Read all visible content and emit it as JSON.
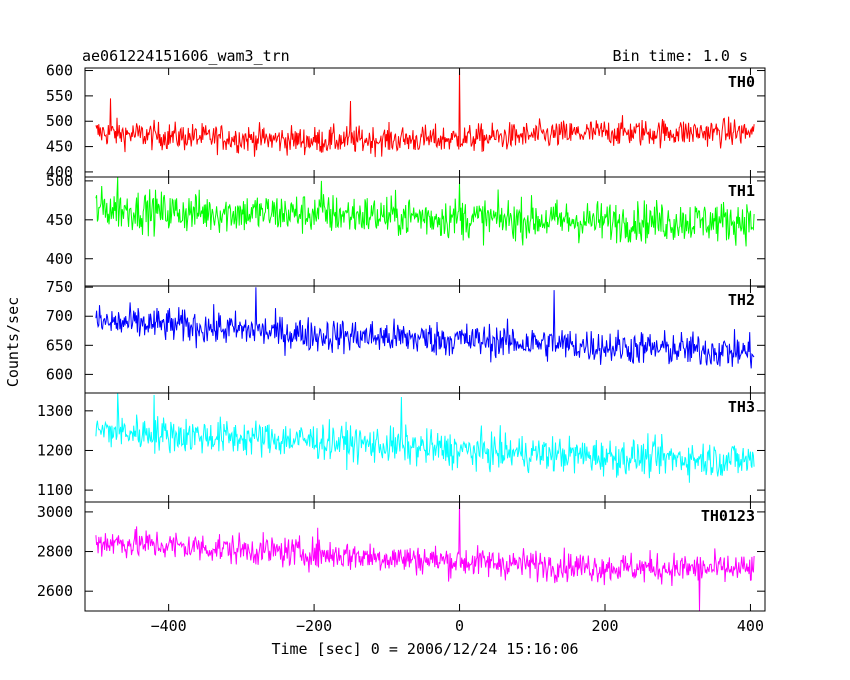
{
  "chart_data": {
    "type": "line",
    "title": "ae061224151606_wam3_trn",
    "subtitle": "Bin time: 1.0 s",
    "xlabel": "Time [sec] 0 = 2006/12/24 15:16:06",
    "ylabel": "Counts/sec",
    "xlim": [
      -515,
      420
    ],
    "x_range": [
      -500,
      405
    ],
    "x_ticks": [
      -400,
      -200,
      0,
      200,
      400
    ],
    "x_tick_labels": [
      "−400",
      "−200",
      "0",
      "200",
      "400"
    ],
    "grid": false,
    "panels": [
      {
        "name": "TH0",
        "color": "#ff0000",
        "ylim": [
          390,
          605
        ],
        "y_ticks": [
          400,
          450,
          500,
          550,
          600
        ],
        "y_tick_labels": [
          "400",
          "450",
          "500",
          "550",
          "600"
        ],
        "baseline": [
          [
            -500,
            478
          ],
          [
            -400,
            470
          ],
          [
            -200,
            462
          ],
          [
            0,
            465
          ],
          [
            200,
            478
          ],
          [
            405,
            478
          ]
        ],
        "noise": 25,
        "spikes": [
          [
            0,
            605
          ],
          [
            -480,
            545
          ],
          [
            -150,
            540
          ]
        ]
      },
      {
        "name": "TH1",
        "color": "#00ff00",
        "ylim": [
          365,
          505
        ],
        "y_ticks": [
          400,
          450,
          500
        ],
        "y_tick_labels": [
          "400",
          "450",
          "500"
        ],
        "baseline": [
          [
            -500,
            465
          ],
          [
            -400,
            460
          ],
          [
            -200,
            458
          ],
          [
            0,
            452
          ],
          [
            200,
            448
          ],
          [
            405,
            448
          ]
        ],
        "noise": 24,
        "spikes": [
          [
            0,
            498
          ],
          [
            -470,
            505
          ],
          [
            -190,
            500
          ]
        ]
      },
      {
        "name": "TH2",
        "color": "#0000ff",
        "ylim": [
          568,
          752
        ],
        "y_ticks": [
          600,
          650,
          700,
          750
        ],
        "y_tick_labels": [
          "600",
          "650",
          "700",
          "750"
        ],
        "baseline": [
          [
            -500,
            690
          ],
          [
            -400,
            685
          ],
          [
            -200,
            668
          ],
          [
            0,
            660
          ],
          [
            200,
            648
          ],
          [
            405,
            638
          ]
        ],
        "noise": 27,
        "spikes": [
          [
            130,
            745
          ],
          [
            -280,
            750
          ]
        ]
      },
      {
        "name": "TH3",
        "color": "#00ffff",
        "ylim": [
          1070,
          1345
        ],
        "y_ticks": [
          1100,
          1200,
          1300
        ],
        "y_tick_labels": [
          "1100",
          "1200",
          "1300"
        ],
        "baseline": [
          [
            -500,
            1250
          ],
          [
            -400,
            1240
          ],
          [
            -200,
            1225
          ],
          [
            0,
            1200
          ],
          [
            200,
            1185
          ],
          [
            405,
            1175
          ]
        ],
        "noise": 42,
        "spikes": [
          [
            -470,
            1345
          ],
          [
            -420,
            1340
          ],
          [
            -80,
            1335
          ]
        ]
      },
      {
        "name": "TH0123",
        "color": "#ff00ff",
        "ylim": [
          2500,
          3050
        ],
        "y_ticks": [
          2600,
          2800,
          3000
        ],
        "y_tick_labels": [
          "2600",
          "2800",
          "3000"
        ],
        "baseline": [
          [
            -500,
            2850
          ],
          [
            -400,
            2830
          ],
          [
            -200,
            2790
          ],
          [
            0,
            2750
          ],
          [
            200,
            2720
          ],
          [
            405,
            2710
          ]
        ],
        "noise": 70,
        "spikes": [
          [
            0,
            3050
          ],
          [
            -195,
            2920
          ],
          [
            330,
            2500
          ]
        ]
      }
    ]
  }
}
